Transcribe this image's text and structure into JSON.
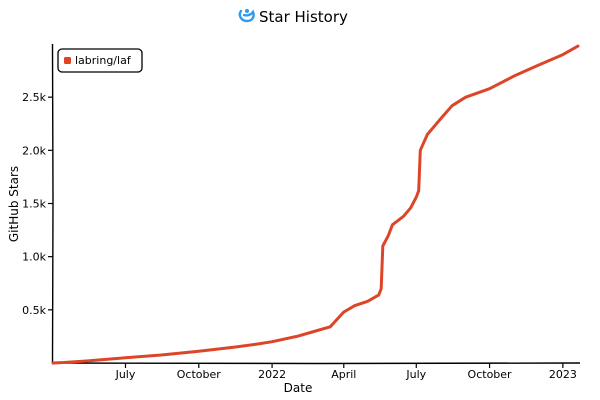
{
  "chart_data": {
    "type": "line",
    "title": "Star History",
    "title_icon": "star-history-logo-icon",
    "xlabel": "Date",
    "ylabel": "GitHub Stars",
    "x_type": "date",
    "xlim": [
      "2021-04-01",
      "2023-01-20"
    ],
    "ylim": [
      0,
      3000
    ],
    "x_ticks": [
      {
        "date": "2021-07-01",
        "label": "July"
      },
      {
        "date": "2021-10-01",
        "label": "October"
      },
      {
        "date": "2022-01-01",
        "label": "2022"
      },
      {
        "date": "2022-04-01",
        "label": "April"
      },
      {
        "date": "2022-07-01",
        "label": "July"
      },
      {
        "date": "2022-10-01",
        "label": "October"
      },
      {
        "date": "2023-01-01",
        "label": "2023"
      }
    ],
    "y_ticks": [
      {
        "value": 500,
        "label": "0.5k"
      },
      {
        "value": 1000,
        "label": "1.0k"
      },
      {
        "value": 1500,
        "label": "1.5k"
      },
      {
        "value": 2000,
        "label": "2.0k"
      },
      {
        "value": 2500,
        "label": "2.5k"
      }
    ],
    "grid": false,
    "legend_position": "top-left",
    "series": [
      {
        "name": "labring/laf",
        "color": "#dd4528",
        "points": [
          [
            "2021-04-01",
            0
          ],
          [
            "2021-04-15",
            5
          ],
          [
            "2021-05-15",
            20
          ],
          [
            "2021-07-01",
            50
          ],
          [
            "2021-08-15",
            75
          ],
          [
            "2021-10-01",
            110
          ],
          [
            "2021-11-15",
            150
          ],
          [
            "2021-12-15",
            180
          ],
          [
            "2022-01-01",
            200
          ],
          [
            "2022-02-01",
            250
          ],
          [
            "2022-03-01",
            310
          ],
          [
            "2022-03-15",
            340
          ],
          [
            "2022-04-01",
            480
          ],
          [
            "2022-04-15",
            540
          ],
          [
            "2022-05-01",
            580
          ],
          [
            "2022-05-15",
            640
          ],
          [
            "2022-05-18",
            700
          ],
          [
            "2022-05-20",
            1100
          ],
          [
            "2022-05-27",
            1200
          ],
          [
            "2022-06-01",
            1300
          ],
          [
            "2022-06-15",
            1380
          ],
          [
            "2022-06-24",
            1460
          ],
          [
            "2022-07-01",
            1560
          ],
          [
            "2022-07-04",
            1620
          ],
          [
            "2022-07-06",
            2000
          ],
          [
            "2022-07-15",
            2150
          ],
          [
            "2022-08-01",
            2300
          ],
          [
            "2022-08-15",
            2420
          ],
          [
            "2022-09-01",
            2500
          ],
          [
            "2022-10-01",
            2580
          ],
          [
            "2022-11-01",
            2700
          ],
          [
            "2022-12-01",
            2800
          ],
          [
            "2023-01-01",
            2900
          ],
          [
            "2023-01-20",
            2980
          ]
        ]
      }
    ]
  }
}
